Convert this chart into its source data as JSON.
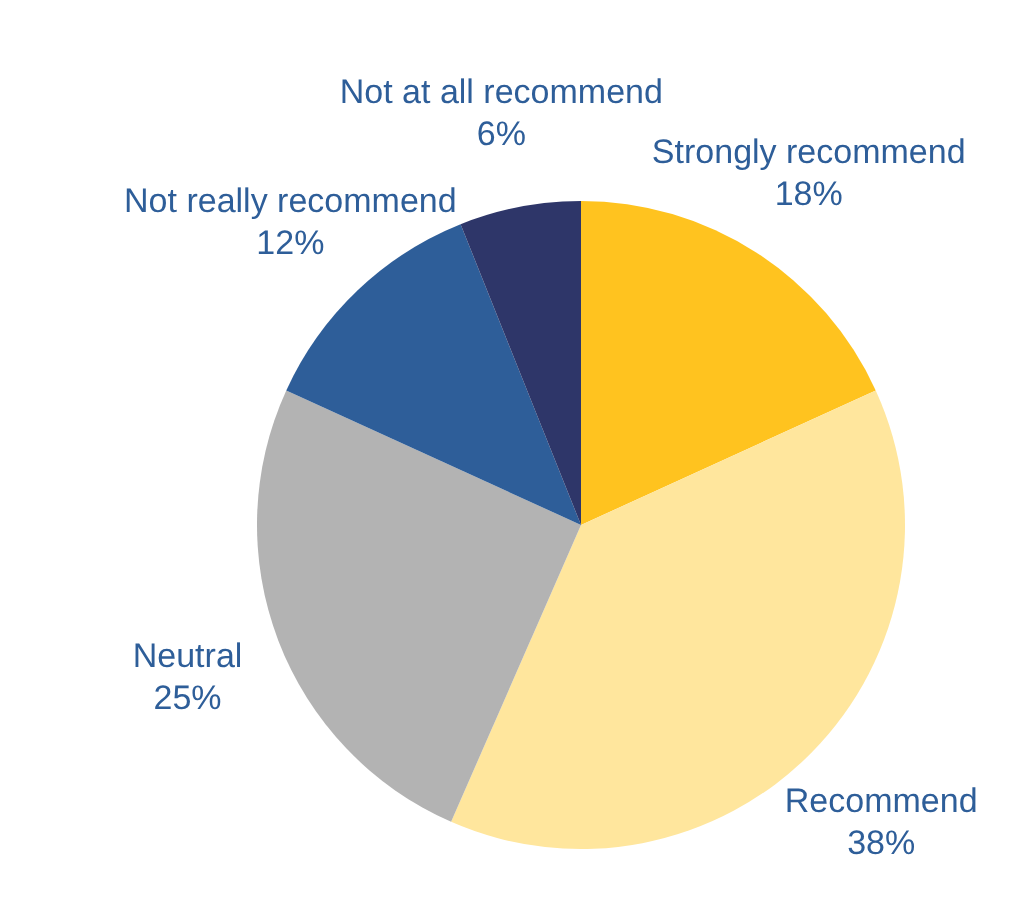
{
  "chart_data": {
    "type": "pie",
    "categories": [
      "Strongly recommend",
      "Recommend",
      "Neutral",
      "Not really recommend",
      "Not at all recommend"
    ],
    "values": [
      18,
      38,
      25,
      12,
      6
    ],
    "value_labels": [
      "18%",
      "38%",
      "25%",
      "12%",
      "6%"
    ],
    "colors": [
      "#ffc31f",
      "#ffe69d",
      "#b3b3b3",
      "#2e5e99",
      "#2e3669"
    ]
  }
}
